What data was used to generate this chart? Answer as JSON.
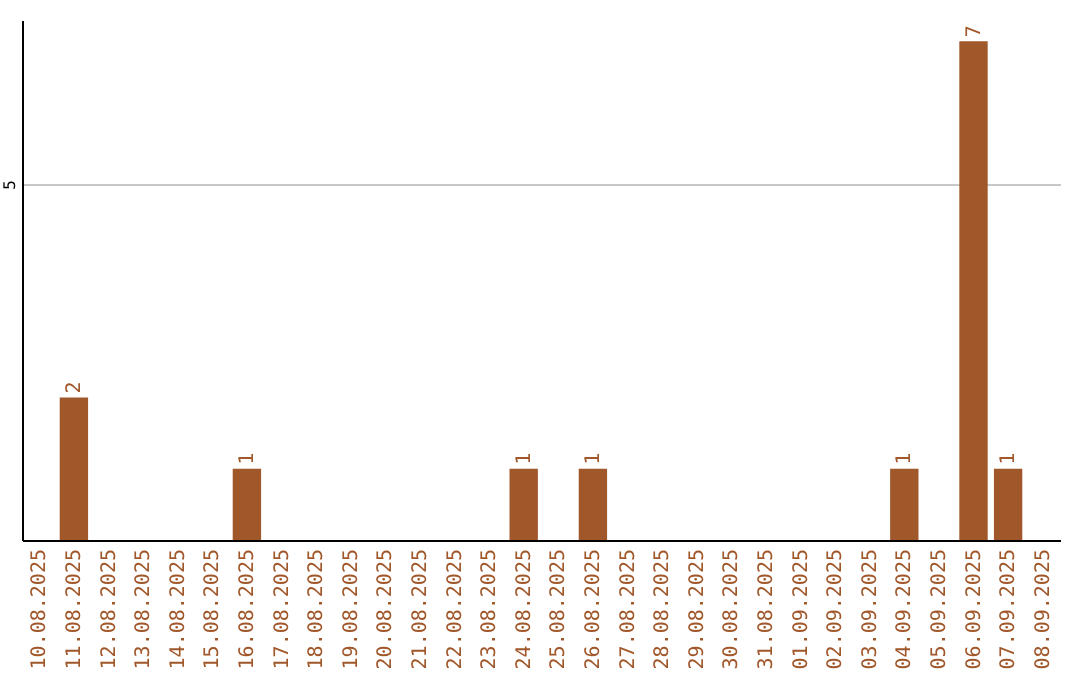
{
  "chart_data": {
    "type": "bar",
    "categories": [
      "10.08.2025",
      "11.08.2025",
      "12.08.2025",
      "13.08.2025",
      "14.08.2025",
      "15.08.2025",
      "16.08.2025",
      "17.08.2025",
      "18.08.2025",
      "19.08.2025",
      "20.08.2025",
      "21.08.2025",
      "22.08.2025",
      "23.08.2025",
      "24.08.2025",
      "25.08.2025",
      "26.08.2025",
      "27.08.2025",
      "28.08.2025",
      "29.08.2025",
      "30.08.2025",
      "31.08.2025",
      "01.09.2025",
      "02.09.2025",
      "03.09.2025",
      "04.09.2025",
      "05.09.2025",
      "06.09.2025",
      "07.09.2025",
      "08.09.2025"
    ],
    "values": [
      0,
      2,
      0,
      0,
      0,
      0,
      1,
      0,
      0,
      0,
      0,
      0,
      0,
      0,
      1,
      0,
      1,
      0,
      0,
      0,
      0,
      0,
      0,
      0,
      0,
      1,
      0,
      7,
      1,
      0
    ],
    "value_labels": [
      null,
      "2",
      null,
      null,
      null,
      null,
      "1",
      null,
      null,
      null,
      null,
      null,
      null,
      null,
      "1",
      null,
      "1",
      null,
      null,
      null,
      null,
      null,
      null,
      null,
      null,
      "1",
      null,
      "7",
      "1",
      null
    ],
    "color": "#a0572a",
    "ylim": [
      0,
      7.3
    ],
    "yticks": [
      5
    ],
    "grid": "y"
  }
}
